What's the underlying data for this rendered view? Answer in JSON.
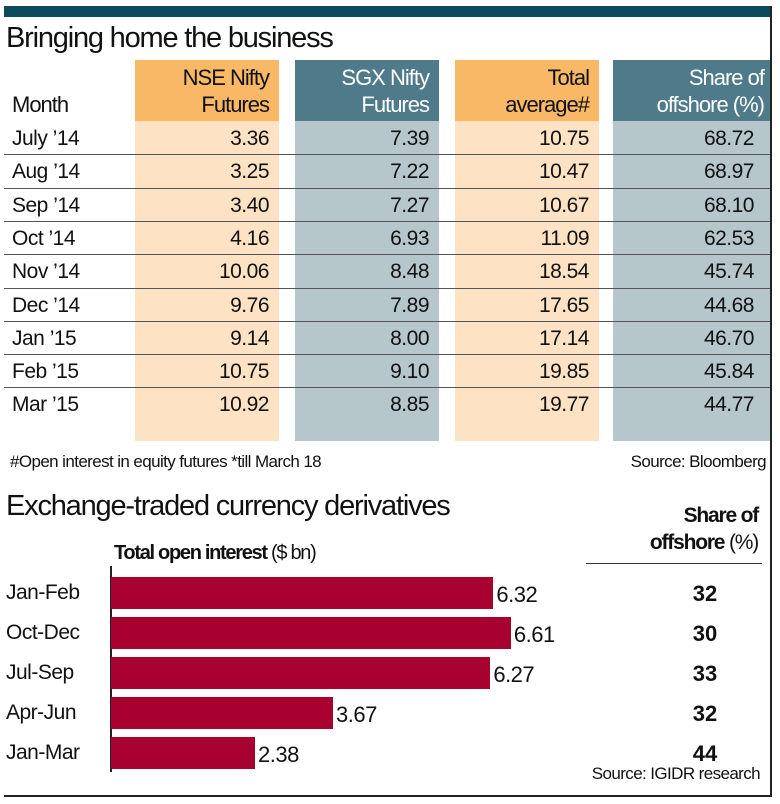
{
  "table": {
    "title": "Bringing home the business",
    "headers": {
      "month": "Month",
      "nse": [
        "NSE Nifty",
        "Futures"
      ],
      "sgx": [
        "SGX Nifty",
        "Futures"
      ],
      "total": [
        "Total",
        "average#"
      ],
      "share": [
        "Share of",
        "offshore (%)"
      ]
    },
    "rows": [
      {
        "month": "July ’14",
        "nse": "3.36",
        "sgx": "7.39",
        "total": "10.75",
        "share": "68.72"
      },
      {
        "month": "Aug ’14",
        "nse": "3.25",
        "sgx": "7.22",
        "total": "10.47",
        "share": "68.97"
      },
      {
        "month": "Sep ’14",
        "nse": "3.40",
        "sgx": "7.27",
        "total": "10.67",
        "share": "68.10"
      },
      {
        "month": "Oct ’14",
        "nse": "4.16",
        "sgx": "6.93",
        "total": "11.09",
        "share": "62.53"
      },
      {
        "month": "Nov ’14",
        "nse": "10.06",
        "sgx": "8.48",
        "total": "18.54",
        "share": "45.74"
      },
      {
        "month": "Dec ’14",
        "nse": "9.76",
        "sgx": "7.89",
        "total": "17.65",
        "share": "44.68"
      },
      {
        "month": "Jan ’15",
        "nse": "9.14",
        "sgx": "8.00",
        "total": "17.14",
        "share": "46.70"
      },
      {
        "month": "Feb ’15",
        "nse": "10.75",
        "sgx": "9.10",
        "total": "19.85",
        "share": "45.84"
      },
      {
        "month": "Mar ’15",
        "nse": "10.92",
        "sgx": "8.85",
        "total": "19.77",
        "share": "44.77"
      }
    ],
    "footnote": "#Open interest in equity futures  *till March 18",
    "source": "Source: Bloomberg"
  },
  "chart_data": {
    "type": "bar",
    "orientation": "horizontal",
    "title": "Exchange-traded currency derivatives",
    "xlabel_bold": "Total open interest",
    "xlabel_unit": "($ bn)",
    "categories": [
      "Jan-Feb",
      "Oct-Dec",
      "Jul-Sep",
      "Apr-Jun",
      "Jan-Mar"
    ],
    "values": [
      6.32,
      6.61,
      6.27,
      3.67,
      2.38
    ],
    "share_header": [
      "Share of",
      "offshore"
    ],
    "share_unit": "(%)",
    "share_values": [
      "32",
      "30",
      "33",
      "32",
      "44"
    ],
    "source": "Source: IGIDR research",
    "bar_color": "#a8002f"
  }
}
